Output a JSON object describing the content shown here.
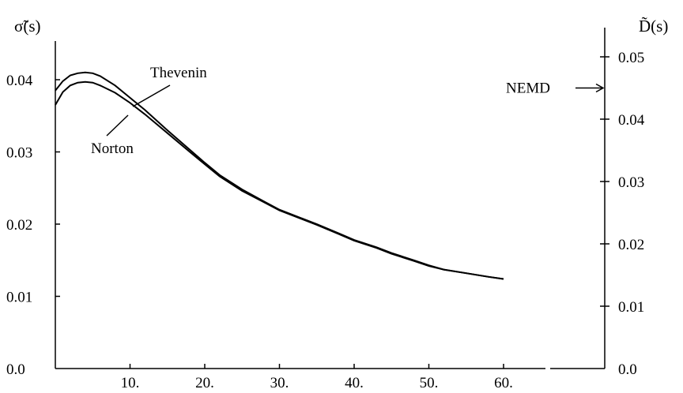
{
  "chart_data": {
    "type": "line",
    "y_left_label": "σ̃(s)",
    "y_right_label": "D̃(s)",
    "xlim": [
      0,
      60
    ],
    "x_ticks": [
      10,
      20,
      30,
      40,
      50,
      60
    ],
    "x_tick_labels": [
      "10.",
      "20.",
      "30.",
      "40.",
      "50.",
      "60."
    ],
    "y_left_lim": [
      0,
      0.05
    ],
    "y_left_ticks": [
      0.0,
      0.01,
      0.02,
      0.03,
      0.04
    ],
    "y_left_tick_labels": [
      "0.0",
      "0.01",
      "0.02",
      "0.03",
      "0.04"
    ],
    "y_right_lim": [
      0,
      0.056
    ],
    "y_right_ticks": [
      0.0,
      0.01,
      0.02,
      0.03,
      0.04,
      0.05
    ],
    "y_right_tick_labels": [
      "0.0",
      "0.01",
      "0.02",
      "0.03",
      "0.04",
      "0.05"
    ],
    "grid": false,
    "series": [
      {
        "name": "Thevenin",
        "x": [
          0,
          1,
          2,
          3,
          4,
          5,
          6,
          8,
          10,
          12,
          15,
          18,
          20,
          22,
          25,
          28,
          30,
          33,
          35,
          38,
          40,
          43,
          45,
          48,
          50,
          52,
          55,
          58,
          60
        ],
        "y": [
          0.0385,
          0.0398,
          0.0406,
          0.0409,
          0.041,
          0.0409,
          0.0405,
          0.0392,
          0.0375,
          0.0358,
          0.033,
          0.0303,
          0.0285,
          0.0268,
          0.0248,
          0.0231,
          0.022,
          0.0208,
          0.02,
          0.0187,
          0.0178,
          0.0168,
          0.016,
          0.015,
          0.0143,
          0.0137,
          0.0132,
          0.0127,
          0.0124
        ]
      },
      {
        "name": "Norton",
        "x": [
          0,
          1,
          2,
          3,
          4,
          5,
          6,
          8,
          10,
          12,
          15,
          18,
          20,
          22,
          25,
          28,
          30,
          33,
          35,
          38,
          40,
          43,
          45,
          48,
          50,
          52,
          55,
          58,
          60
        ],
        "y": [
          0.0365,
          0.0383,
          0.0392,
          0.0396,
          0.0397,
          0.0396,
          0.0392,
          0.0382,
          0.0368,
          0.0352,
          0.0326,
          0.03,
          0.0283,
          0.0266,
          0.0246,
          0.023,
          0.0219,
          0.0207,
          0.0199,
          0.0186,
          0.0177,
          0.0167,
          0.0159,
          0.0149,
          0.0142,
          0.0137,
          0.0132,
          0.0127,
          0.0124
        ]
      }
    ],
    "annotations": [
      {
        "text": "Thevenin"
      },
      {
        "text": "Norton"
      },
      {
        "text": "NEMD",
        "value": 0.045
      }
    ]
  }
}
